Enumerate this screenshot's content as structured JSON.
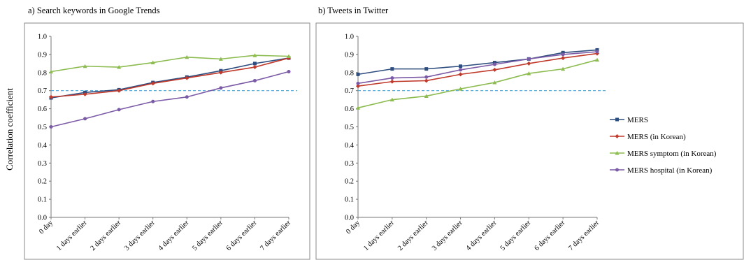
{
  "panel_a_title": "a) Search  keywords in Google Trends",
  "panel_b_title": "b) Tweets in Twitter",
  "ylabel": "Correlation coefficient",
  "legend": [
    {
      "name": "MERS",
      "color": "#2e4d7f",
      "marker": "square"
    },
    {
      "name": "MERS  (in Korean)",
      "color": "#c0392b",
      "marker": "diamond"
    },
    {
      "name": "MERS  symptom  (in Korean)",
      "color": "#8cbb4f",
      "marker": "triangle"
    },
    {
      "name": "MERS  hospital (in Korean)",
      "color": "#7b5aa6",
      "marker": "circle"
    }
  ],
  "threshold": {
    "value": 0.7,
    "color": "#4aa3d6"
  },
  "chart_data": [
    {
      "type": "line",
      "title": "a) Search  keywords in Google Trends",
      "ylabel": "Correlation coefficient",
      "categories": [
        "0 day",
        "1 days earlier",
        "2 days earlier",
        "3 days earlier",
        "4 days earlier",
        "5 days earlier",
        "6 days earlier",
        "7 days earlier"
      ],
      "yticks": [
        "0.0",
        "0.1",
        "0.2",
        "0.3",
        "0.4",
        "0.5",
        "0.6",
        "0.7",
        "0.8",
        "0.9",
        "1.0"
      ],
      "ylim": [
        0,
        1
      ],
      "reference_line": 0.7,
      "series": [
        {
          "name": "MERS",
          "values": [
            0.66,
            0.69,
            0.705,
            0.745,
            0.775,
            0.81,
            0.85,
            0.88
          ]
        },
        {
          "name": "MERS  (in Korean)",
          "values": [
            0.665,
            0.68,
            0.7,
            0.74,
            0.77,
            0.8,
            0.83,
            0.88
          ]
        },
        {
          "name": "MERS  symptom  (in Korean)",
          "values": [
            0.805,
            0.835,
            0.83,
            0.855,
            0.885,
            0.875,
            0.895,
            0.89
          ]
        },
        {
          "name": "MERS  hospital (in Korean)",
          "values": [
            0.5,
            0.545,
            0.595,
            0.64,
            0.665,
            0.715,
            0.755,
            0.805
          ]
        }
      ]
    },
    {
      "type": "line",
      "title": "b) Tweets in Twitter",
      "categories": [
        "0 day",
        "1 days earlier",
        "2 days earlier",
        "3 days earlier",
        "4 days earlier",
        "5 days earlier",
        "6 days earlier",
        "7 days earlier"
      ],
      "yticks": [
        "0.0",
        "0.1",
        "0.2",
        "0.3",
        "0.4",
        "0.5",
        "0.6",
        "0.7",
        "0.8",
        "0.9",
        "1.0"
      ],
      "ylim": [
        0,
        1
      ],
      "reference_line": 0.7,
      "series": [
        {
          "name": "MERS",
          "values": [
            0.79,
            0.82,
            0.82,
            0.835,
            0.855,
            0.875,
            0.91,
            0.925
          ]
        },
        {
          "name": "MERS  (in Korean)",
          "values": [
            0.725,
            0.75,
            0.755,
            0.79,
            0.815,
            0.85,
            0.88,
            0.905
          ]
        },
        {
          "name": "MERS  symptom  (in Korean)",
          "values": [
            0.605,
            0.65,
            0.67,
            0.71,
            0.745,
            0.795,
            0.82,
            0.87
          ]
        },
        {
          "name": "MERS  hospital (in Korean)",
          "values": [
            0.74,
            0.77,
            0.775,
            0.815,
            0.845,
            0.875,
            0.9,
            0.915
          ]
        }
      ]
    }
  ]
}
